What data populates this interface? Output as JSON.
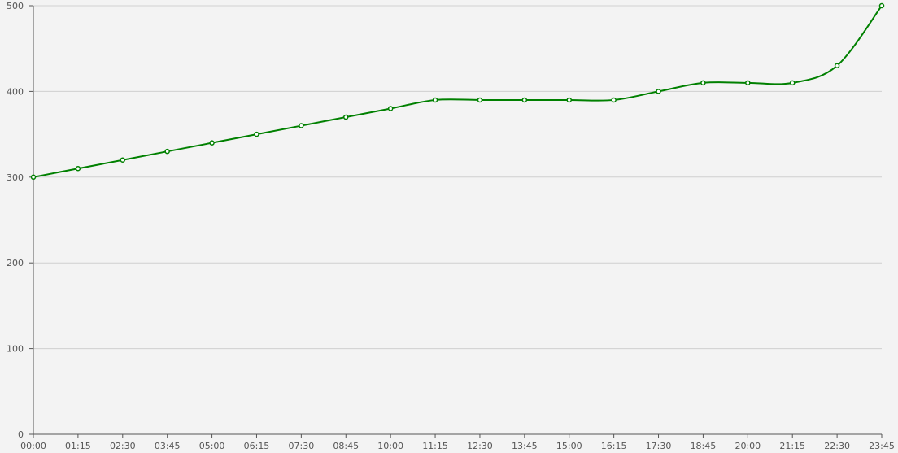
{
  "chart_data": {
    "type": "line",
    "title": "",
    "xlabel": "",
    "ylabel": "",
    "x": [
      "00:00",
      "01:15",
      "02:30",
      "03:45",
      "05:00",
      "06:15",
      "07:30",
      "08:45",
      "10:00",
      "11:15",
      "12:30",
      "13:45",
      "15:00",
      "16:15",
      "17:30",
      "18:45",
      "20:00",
      "21:15",
      "22:30",
      "23:45"
    ],
    "series": [
      {
        "values": [
          300,
          310,
          320,
          330,
          340,
          350,
          360,
          370,
          380,
          390,
          390,
          390,
          390,
          390,
          400,
          410,
          410,
          410,
          430,
          500
        ]
      }
    ],
    "ylim": [
      0,
      500
    ],
    "yticks": [
      0,
      100,
      200,
      300,
      400,
      500
    ],
    "grid": "horizontal",
    "legend": "none",
    "colors": {
      "line": "#008000",
      "marker_fill": "#ffffff",
      "background": "#f3f3f3",
      "grid": "#d0d0d0",
      "axis": "#555555"
    },
    "smooth": true
  }
}
